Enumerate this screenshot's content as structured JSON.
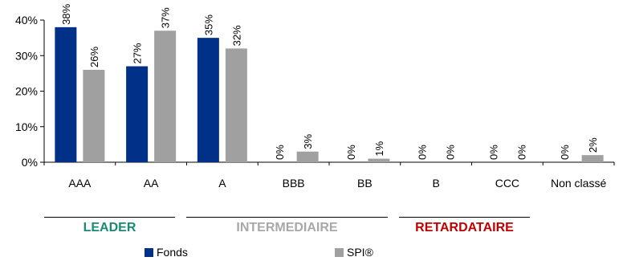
{
  "chart_data": {
    "type": "bar",
    "categories": [
      "AAA",
      "AA",
      "A",
      "BBB",
      "BB",
      "B",
      "CCC",
      "Non classé"
    ],
    "series": [
      {
        "name": "Fonds",
        "values": [
          38,
          27,
          35,
          0,
          0,
          0,
          0,
          0
        ],
        "color": "#003087"
      },
      {
        "name": "SPI®",
        "values": [
          26,
          37,
          32,
          3,
          1,
          0,
          0,
          2
        ],
        "color": "#A0A0A0"
      }
    ],
    "value_suffix": "%",
    "ylim": [
      0,
      40
    ],
    "yticks": [
      0,
      10,
      20,
      30,
      40
    ],
    "ytick_labels": [
      "0%",
      "10%",
      "20%",
      "30%",
      "40%"
    ],
    "grid": false,
    "legend_position": "bottom"
  },
  "groups": [
    {
      "label": "LEADER",
      "color": "#1A8A74"
    },
    {
      "label": "INTERMEDIAIRE",
      "color": "#A8A8A8"
    },
    {
      "label": "RETARDATAIRE",
      "color": "#C00000"
    }
  ],
  "legend": {
    "fonds_label": "Fonds",
    "spi_label": "SPI®"
  }
}
